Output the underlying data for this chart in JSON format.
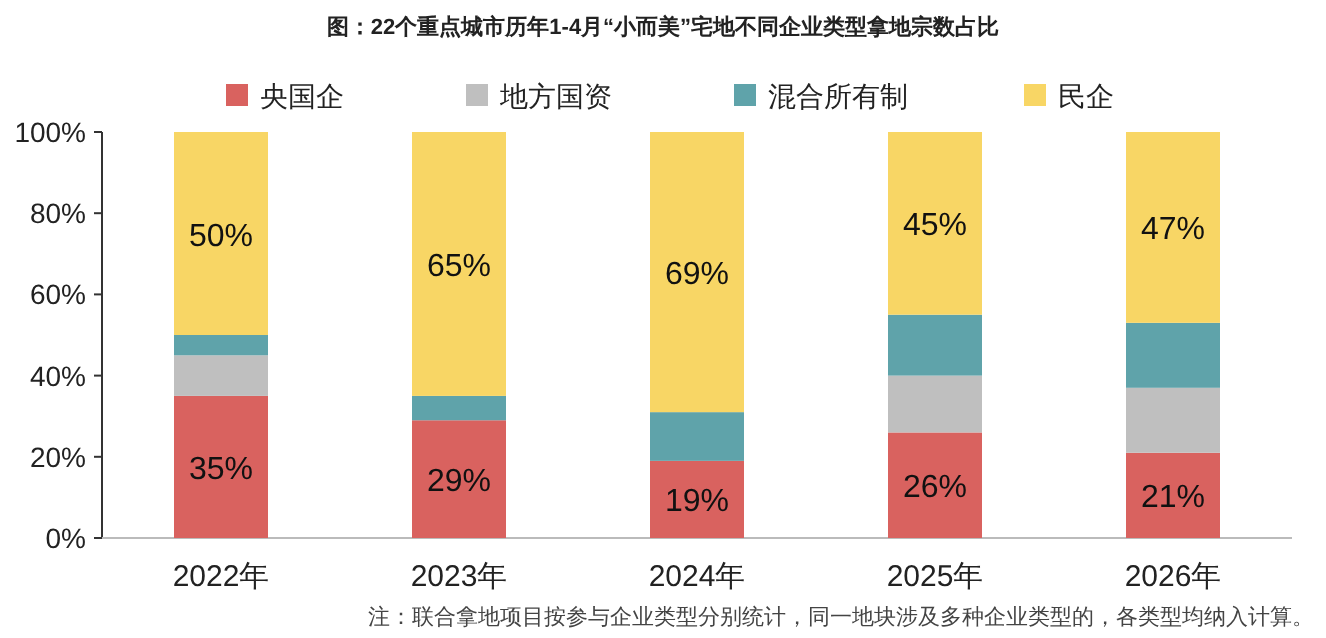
{
  "chart_data": {
    "type": "bar",
    "stacked": true,
    "title": "图：22个重点城市历年1-4月“小而美”宅地不同企业类型拿地宗数占比",
    "categories": [
      "2022年",
      "2023年",
      "2024年",
      "2025年",
      "2026年"
    ],
    "series": [
      {
        "name": "央国企",
        "color": "#d9625f",
        "values": [
          35,
          29,
          19,
          26,
          21
        ],
        "value_labels": [
          "35%",
          "29%",
          "19%",
          "26%",
          "21%"
        ]
      },
      {
        "name": "地方国资",
        "color": "#bfbfbf",
        "values": [
          10,
          0,
          0,
          14,
          16
        ]
      },
      {
        "name": "混合所有制",
        "color": "#5fa3aa",
        "values": [
          5,
          6,
          12,
          15,
          16
        ]
      },
      {
        "name": "民企",
        "color": "#f8d665",
        "values": [
          50,
          65,
          69,
          45,
          47
        ],
        "value_labels": [
          "50%",
          "65%",
          "69%",
          "45%",
          "47%"
        ]
      }
    ],
    "ylim": [
      0,
      100
    ],
    "yticks": [
      {
        "value": 0,
        "label": "0%"
      },
      {
        "value": 20,
        "label": "20%"
      },
      {
        "value": 40,
        "label": "40%"
      },
      {
        "value": 60,
        "label": "60%"
      },
      {
        "value": 80,
        "label": "80%"
      },
      {
        "value": 100,
        "label": "100%"
      }
    ],
    "legend": "top",
    "grid": false,
    "annotations": [
      "注：联合拿地项目按参与企业类型分别统计，同一地块涉及多种企业类型的，各类型均纳入计算。"
    ]
  }
}
